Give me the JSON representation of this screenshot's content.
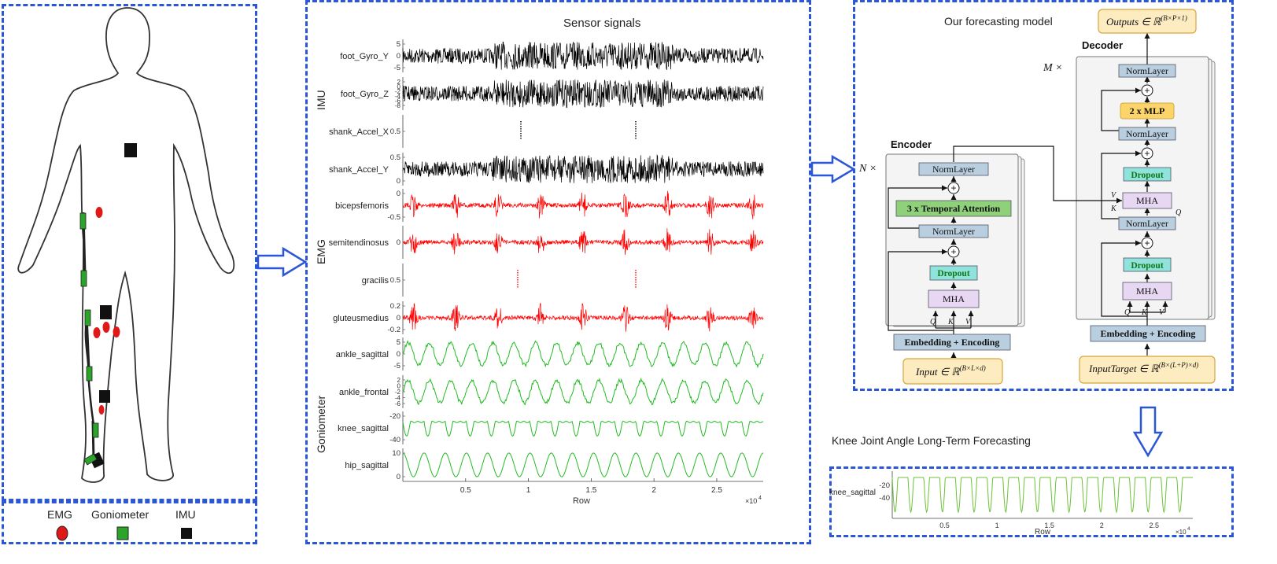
{
  "legend": {
    "emg": "EMG",
    "goniometer": "Goniometer",
    "imu": "IMU"
  },
  "sensor_panel": {
    "title": "Sensor signals",
    "groups": [
      "IMU",
      "EMG",
      "Goniometer"
    ],
    "channels": [
      {
        "label": "foot_Gyro_Y",
        "ticks": [
          "5",
          "0",
          "-5"
        ],
        "color": "#000000"
      },
      {
        "label": "foot_Gyro_Z",
        "ticks": [
          "2",
          "0",
          "-2",
          "-4",
          "-6",
          "-8"
        ],
        "color": "#000000"
      },
      {
        "label": "shank_Accel_X",
        "ticks": [
          "0.5"
        ],
        "color": "#000000"
      },
      {
        "label": "shank_Accel_Y",
        "ticks": [
          "0.5",
          "0"
        ],
        "color": "#000000"
      },
      {
        "label": "bicepsfemoris",
        "ticks": [
          "0",
          "-0.5"
        ],
        "color": "#ff0000"
      },
      {
        "label": "semitendinosus",
        "ticks": [
          "0"
        ],
        "color": "#ff0000"
      },
      {
        "label": "gracilis",
        "ticks": [
          "0.5"
        ],
        "color": "#ff0000"
      },
      {
        "label": "gluteusmedius",
        "ticks": [
          "0.2",
          "0",
          "-0.2"
        ],
        "color": "#ff0000"
      },
      {
        "label": "ankle_sagittal",
        "ticks": [
          "5",
          "0",
          "-5"
        ],
        "color": "#22bb22"
      },
      {
        "label": "ankle_frontal",
        "ticks": [
          "2",
          "0",
          "-2",
          "-4",
          "-6"
        ],
        "color": "#22bb22"
      },
      {
        "label": "knee_sagittal",
        "ticks": [
          "-20",
          "-40"
        ],
        "color": "#22bb22"
      },
      {
        "label": "hip_sagittal",
        "ticks": [
          "10",
          "0"
        ],
        "color": "#22bb22"
      }
    ],
    "x_ticks": [
      "0.5",
      "1",
      "1.5",
      "2",
      "2.5"
    ],
    "x_label": "Row",
    "x_multiplier": "×10",
    "x_exponent": "4"
  },
  "model": {
    "title": "Our forecasting model",
    "encoder_title": "Encoder",
    "decoder_title": "Decoder",
    "n_times": "N ×",
    "m_times": "M ×",
    "norm_layer": "NormLayer",
    "temporal_attention": "3 x Temporal Attention",
    "dropout": "Dropout",
    "mha": "MHA",
    "mlp": "2 x MLP",
    "embedding": "Embedding + Encoding",
    "plus": "+",
    "q": "Q",
    "k": "K",
    "v": "V",
    "input_prefix": "Input ∈ ℝ",
    "input_sup": "(B×L×d)",
    "target_prefix": "InputTarget ∈ ℝ",
    "target_sup": "(B×(L+P)×d)",
    "output_prefix": "Outputs ∈ ℝ",
    "output_sup": "(B×P×1)"
  },
  "forecast": {
    "title": "Knee Joint Angle Long-Term Forecasting",
    "label": "knee_sagittal",
    "y_ticks": [
      "-20",
      "-40"
    ],
    "x_ticks": [
      "0.5",
      "1",
      "1.5",
      "2",
      "2.5"
    ],
    "x_label": "Row",
    "x_multiplier": "×10",
    "x_exponent": "4"
  }
}
